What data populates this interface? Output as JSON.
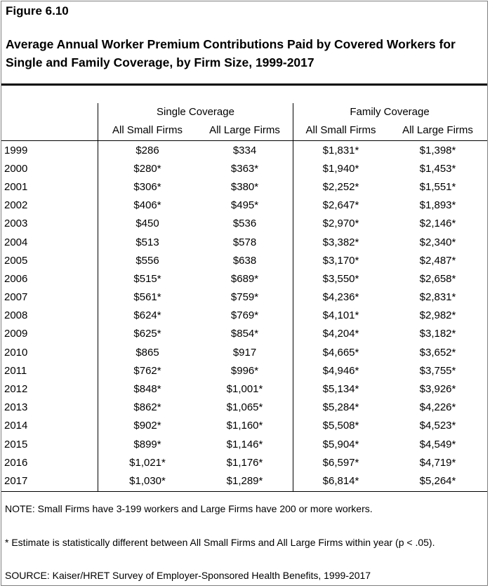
{
  "figure_label": "Figure 6.10",
  "title": "Average Annual Worker Premium Contributions Paid by Covered Workers for Single and Family Coverage, by Firm Size, 1999-2017",
  "groups": [
    "Single Coverage",
    "Family Coverage"
  ],
  "subheaders": [
    "All Small Firms",
    "All Large Firms",
    "All Small Firms",
    "All Large Firms"
  ],
  "rows": [
    [
      "1999",
      "$286",
      "$334",
      "$1,831*",
      "$1,398*"
    ],
    [
      "2000",
      "$280*",
      "$363*",
      "$1,940*",
      "$1,453*"
    ],
    [
      "2001",
      "$306*",
      "$380*",
      "$2,252*",
      "$1,551*"
    ],
    [
      "2002",
      "$406*",
      "$495*",
      "$2,647*",
      "$1,893*"
    ],
    [
      "2003",
      "$450",
      "$536",
      "$2,970*",
      "$2,146*"
    ],
    [
      "2004",
      "$513",
      "$578",
      "$3,382*",
      "$2,340*"
    ],
    [
      "2005",
      "$556",
      "$638",
      "$3,170*",
      "$2,487*"
    ],
    [
      "2006",
      "$515*",
      "$689*",
      "$3,550*",
      "$2,658*"
    ],
    [
      "2007",
      "$561*",
      "$759*",
      "$4,236*",
      "$2,831*"
    ],
    [
      "2008",
      "$624*",
      "$769*",
      "$4,101*",
      "$2,982*"
    ],
    [
      "2009",
      "$625*",
      "$854*",
      "$4,204*",
      "$3,182*"
    ],
    [
      "2010",
      "$865",
      "$917",
      "$4,665*",
      "$3,652*"
    ],
    [
      "2011",
      "$762*",
      "$996*",
      "$4,946*",
      "$3,755*"
    ],
    [
      "2012",
      "$848*",
      "$1,001*",
      "$5,134*",
      "$3,926*"
    ],
    [
      "2013",
      "$862*",
      "$1,065*",
      "$5,284*",
      "$4,226*"
    ],
    [
      "2014",
      "$902*",
      "$1,160*",
      "$5,508*",
      "$4,523*"
    ],
    [
      "2015",
      "$899*",
      "$1,146*",
      "$5,904*",
      "$4,549*"
    ],
    [
      "2016",
      "$1,021*",
      "$1,176*",
      "$6,597*",
      "$4,719*"
    ],
    [
      "2017",
      "$1,030*",
      "$1,289*",
      "$6,814*",
      "$5,264*"
    ]
  ],
  "note": "NOTE: Small Firms have 3-199 workers and Large Firms have 200 or more workers.",
  "footnote": "* Estimate is statistically different between All Small Firms and All Large Firms within year (p < .05).",
  "source": "SOURCE: Kaiser/HRET Survey of Employer-Sponsored Health Benefits, 1999-2017"
}
